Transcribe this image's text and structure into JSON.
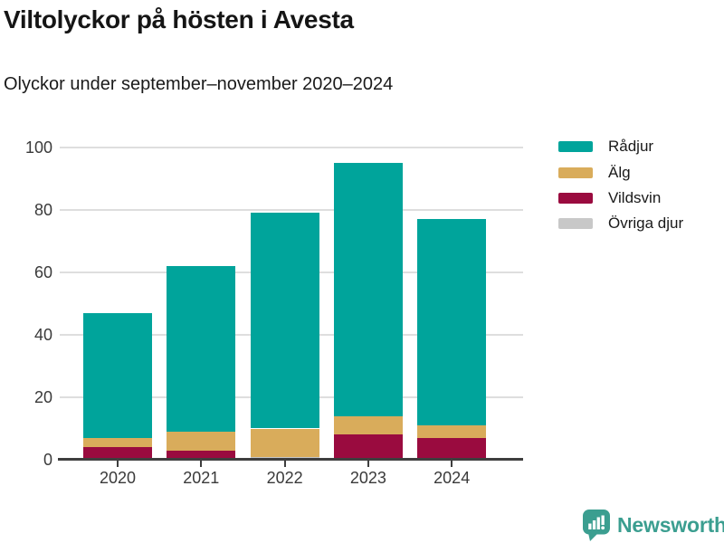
{
  "header": {
    "title": "Viltolyckor på hösten i Avesta",
    "subtitle": "Olyckor under september–november 2020–2024"
  },
  "chart_data": {
    "type": "bar",
    "stacked": true,
    "title": "Viltolyckor på hösten i Avesta",
    "subtitle": "Olyckor under september–november 2020–2024",
    "categories": [
      "2020",
      "2021",
      "2022",
      "2023",
      "2024"
    ],
    "series": [
      {
        "name": "Rådjur",
        "color": "#00a49b",
        "values": [
          40,
          53,
          69,
          81,
          66
        ]
      },
      {
        "name": "Älg",
        "color": "#d9ac5b",
        "values": [
          3,
          6,
          9,
          6,
          4
        ]
      },
      {
        "name": "Vildsvin",
        "color": "#9a0b3f",
        "values": [
          4,
          3,
          0,
          8,
          7
        ]
      },
      {
        "name": "Övriga djur",
        "color": "#c8c8c8",
        "values": [
          0,
          0,
          1,
          0,
          0
        ]
      }
    ],
    "stack_order_bottom_to_top": [
      "Övriga djur",
      "Vildsvin",
      "Älg",
      "Rådjur"
    ],
    "totals": [
      47,
      62,
      79,
      95,
      77
    ],
    "xlabel": "",
    "ylabel": "",
    "ylim": [
      0,
      100
    ],
    "yticks": [
      0,
      20,
      40,
      60,
      80,
      100
    ],
    "grid": "horizontal",
    "legend_position": "top-right"
  },
  "footer": {
    "brand": "Newsworthy",
    "brand_color": "#3b9e90"
  }
}
